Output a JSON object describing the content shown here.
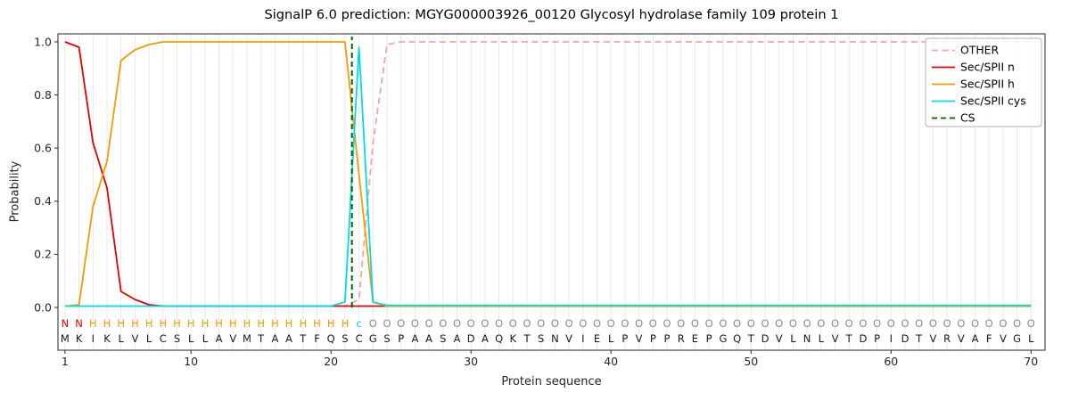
{
  "chart_data": {
    "type": "line",
    "title": "SignalP 6.0 prediction: MGYG000003926_00120 Glycosyl hydrolase family 109 protein 1",
    "xlabel": "Protein sequence",
    "ylabel": "Probability",
    "xlim": [
      0.5,
      71
    ],
    "ylim": [
      0,
      1.05
    ],
    "xticks": [
      1,
      10,
      20,
      30,
      40,
      50,
      60,
      70
    ],
    "yticks": [
      0,
      0.2,
      0.4,
      0.6,
      0.8,
      1
    ],
    "grid": "light vertical gridline at every residue position",
    "legend_position": "upper right",
    "x_start": 1,
    "x_step": 1,
    "series": [
      {
        "name": "OTHER",
        "color": "#f4a4a4",
        "dash": "7 4.5",
        "values": [
          0.005,
          0.005,
          0.005,
          0.005,
          0.005,
          0.005,
          0.005,
          0.005,
          0.005,
          0.005,
          0.005,
          0.005,
          0.005,
          0.005,
          0.005,
          0.005,
          0.005,
          0.005,
          0.005,
          0.005,
          0.005,
          0.03,
          0.62,
          0.99,
          1.0,
          1.0,
          1.0,
          1.0,
          1.0,
          1.0,
          1.0,
          1.0,
          1.0,
          1.0,
          1.0,
          1.0,
          1.0,
          1.0,
          1.0,
          1.0,
          1.0,
          1.0,
          1.0,
          1.0,
          1.0,
          1.0,
          1.0,
          1.0,
          1.0,
          1.0,
          1.0,
          1.0,
          1.0,
          1.0,
          1.0,
          1.0,
          1.0,
          1.0,
          1.0,
          1.0,
          1.0,
          1.0,
          1.0,
          1.0,
          1.0,
          1.0,
          1.0,
          1.0,
          1.0,
          1.0
        ]
      },
      {
        "name": "Sec/SPII n",
        "color": "#e60000",
        "dash": null,
        "values": [
          1.0,
          0.98,
          0.62,
          0.45,
          0.06,
          0.03,
          0.01,
          0.005,
          0.005,
          0.005,
          0.005,
          0.005,
          0.005,
          0.005,
          0.005,
          0.005,
          0.005,
          0.005,
          0.005,
          0.005,
          0.005,
          0.005,
          0.005,
          0.005,
          0.005,
          0.005,
          0.005,
          0.005,
          0.005,
          0.005,
          0.005,
          0.005,
          0.005,
          0.005,
          0.005,
          0.005,
          0.005,
          0.005,
          0.005,
          0.005,
          0.005,
          0.005,
          0.005,
          0.005,
          0.005,
          0.005,
          0.005,
          0.005,
          0.005,
          0.005,
          0.005,
          0.005,
          0.005,
          0.005,
          0.005,
          0.005,
          0.005,
          0.005,
          0.005,
          0.005,
          0.005,
          0.005,
          0.005,
          0.005,
          0.005,
          0.005,
          0.005,
          0.005,
          0.005,
          0.005
        ]
      },
      {
        "name": "Sec/SPII h",
        "color": "#f59b00",
        "dash": null,
        "values": [
          0.005,
          0.01,
          0.38,
          0.55,
          0.93,
          0.97,
          0.99,
          1.0,
          1.0,
          1.0,
          1.0,
          1.0,
          1.0,
          1.0,
          1.0,
          1.0,
          1.0,
          1.0,
          1.0,
          1.0,
          1.0,
          0.5,
          0.02,
          0.005,
          0.005,
          0.005,
          0.005,
          0.005,
          0.005,
          0.005,
          0.005,
          0.005,
          0.005,
          0.005,
          0.005,
          0.005,
          0.005,
          0.005,
          0.005,
          0.005,
          0.005,
          0.005,
          0.005,
          0.005,
          0.005,
          0.005,
          0.005,
          0.005,
          0.005,
          0.005,
          0.005,
          0.005,
          0.005,
          0.005,
          0.005,
          0.005,
          0.005,
          0.005,
          0.005,
          0.005,
          0.005,
          0.005,
          0.005,
          0.005,
          0.005,
          0.005,
          0.005,
          0.005,
          0.005,
          0.005
        ]
      },
      {
        "name": "Sec/SPII cys",
        "color": "#00dce4",
        "dash": null,
        "values": [
          0.005,
          0.005,
          0.005,
          0.005,
          0.005,
          0.005,
          0.005,
          0.005,
          0.005,
          0.005,
          0.005,
          0.005,
          0.005,
          0.005,
          0.005,
          0.005,
          0.005,
          0.005,
          0.005,
          0.005,
          0.02,
          0.98,
          0.02,
          0.008,
          0.008,
          0.008,
          0.008,
          0.008,
          0.008,
          0.008,
          0.008,
          0.008,
          0.008,
          0.008,
          0.008,
          0.008,
          0.008,
          0.008,
          0.008,
          0.008,
          0.008,
          0.008,
          0.008,
          0.008,
          0.008,
          0.008,
          0.008,
          0.008,
          0.008,
          0.008,
          0.008,
          0.008,
          0.008,
          0.008,
          0.008,
          0.008,
          0.008,
          0.008,
          0.008,
          0.008,
          0.008,
          0.008,
          0.008,
          0.008,
          0.008,
          0.008,
          0.008,
          0.008,
          0.008,
          0.008
        ]
      }
    ],
    "cs_marker": {
      "label": "CS",
      "x": 21.5,
      "color": "#006400",
      "dash": "6 4"
    },
    "sequence": "MKIKLVLCSLLAVMTAATFQSCGSPAASADAQKTSNVIELPVPPREPGQTDVLNLVTDPIDTVRVAFVGL",
    "region_labels": "NNHHHHHHHHHHHHHHHHHHHcOOOOOOOOOOOOOOOOOOOOOOOOOOOOOOOOOOOOOOOOOOOOOOOO",
    "region_colors": {
      "N": "#e60000",
      "H": "#f59b00",
      "c": "#00dce4",
      "O": "#8c8c8c"
    },
    "legend_labels": [
      "OTHER",
      "Sec/SPII n",
      "Sec/SPII h",
      "Sec/SPII cys",
      "CS"
    ],
    "axis_color": "#262626",
    "grid_color": "#e6e6e6",
    "sequence_color": "#1a1a1a"
  }
}
